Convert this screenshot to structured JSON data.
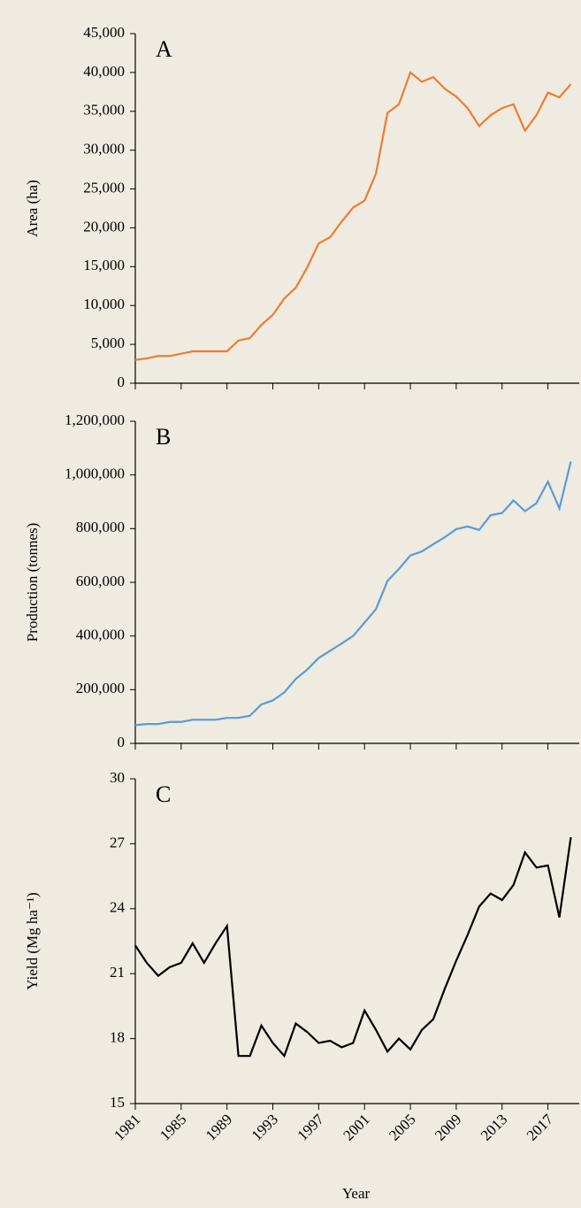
{
  "chart_data": [
    {
      "type": "line",
      "annotation": "A",
      "ylabel": "Area (ha)",
      "color": "#ed7d31",
      "x": [
        1981,
        1982,
        1983,
        1984,
        1985,
        1986,
        1987,
        1988,
        1989,
        1990,
        1991,
        1992,
        1993,
        1994,
        1995,
        1996,
        1997,
        1998,
        1999,
        2000,
        2001,
        2002,
        2003,
        2004,
        2005,
        2006,
        2007,
        2008,
        2009,
        2010,
        2011,
        2012,
        2013,
        2014,
        2015,
        2016,
        2017,
        2018,
        2019
      ],
      "values": [
        3000,
        3200,
        3500,
        3500,
        3800,
        4100,
        4100,
        4100,
        4100,
        5500,
        5800,
        7500,
        8800,
        10900,
        12300,
        14900,
        18000,
        18800,
        20800,
        22600,
        23500,
        27000,
        34800,
        35900,
        40000,
        38800,
        39400,
        37900,
        36900,
        35400,
        33100,
        34500,
        35400,
        35900,
        32500,
        34500,
        37400,
        36800,
        38500
      ],
      "xlim": [
        1981,
        2019.5
      ],
      "ylim": [
        0,
        45000
      ],
      "yticks": [
        0,
        {
          "value": 5000,
          "label": "5,000"
        },
        {
          "value": 10000,
          "label": "10,000"
        },
        {
          "value": 15000,
          "label": "15,000"
        },
        {
          "value": 20000,
          "label": "20,000"
        },
        {
          "value": 25000,
          "label": "25,000"
        },
        {
          "value": 30000,
          "label": "30,000"
        },
        {
          "value": 35000,
          "label": "35,000"
        },
        {
          "value": 40000,
          "label": "40,000"
        },
        {
          "value": 45000,
          "label": "45,000"
        }
      ]
    },
    {
      "type": "line",
      "annotation": "B",
      "ylabel": "Production  (tonnes)",
      "color": "#5b9bd5",
      "x": [
        1981,
        1982,
        1983,
        1984,
        1985,
        1986,
        1987,
        1988,
        1989,
        1990,
        1991,
        1992,
        1993,
        1994,
        1995,
        1996,
        1997,
        1998,
        1999,
        2000,
        2001,
        2002,
        2003,
        2004,
        2005,
        2006,
        2007,
        2008,
        2009,
        2010,
        2011,
        2012,
        2013,
        2014,
        2015,
        2016,
        2017,
        2018,
        2019
      ],
      "values": [
        68000,
        72000,
        72000,
        80000,
        80000,
        88000,
        88000,
        88000,
        95000,
        95000,
        103000,
        145000,
        160000,
        190000,
        240000,
        275000,
        318000,
        345000,
        372000,
        400000,
        450000,
        500000,
        605000,
        650000,
        700000,
        715000,
        742000,
        768000,
        798000,
        808000,
        795000,
        850000,
        858000,
        905000,
        865000,
        895000,
        975000,
        875000,
        1050000
      ],
      "xlim": [
        1981,
        2019.5
      ],
      "ylim": [
        0,
        1200000
      ],
      "yticks": [
        0,
        {
          "value": 200000,
          "label": "200,000"
        },
        {
          "value": 400000,
          "label": "400,000"
        },
        {
          "value": 600000,
          "label": "600,000"
        },
        {
          "value": 800000,
          "label": "800,000"
        },
        {
          "value": 1000000,
          "label": "1,000,000"
        },
        {
          "value": 1200000,
          "label": "1,200,000"
        }
      ]
    },
    {
      "type": "line",
      "annotation": "C",
      "ylabel": "Yield  (Mg ha⁻¹)",
      "xlabel": "Year",
      "color": "#000000",
      "x": [
        1981,
        1982,
        1983,
        1984,
        1985,
        1986,
        1987,
        1988,
        1989,
        1990,
        1991,
        1992,
        1993,
        1994,
        1995,
        1996,
        1997,
        1998,
        1999,
        2000,
        2001,
        2002,
        2003,
        2004,
        2005,
        2006,
        2007,
        2008,
        2009,
        2010,
        2011,
        2012,
        2013,
        2014,
        2015,
        2016,
        2017,
        2018,
        2019
      ],
      "values": [
        22.3,
        21.5,
        20.9,
        21.3,
        21.5,
        22.4,
        21.5,
        22.4,
        23.2,
        17.2,
        17.2,
        18.6,
        17.8,
        17.2,
        18.7,
        18.3,
        17.8,
        17.9,
        17.6,
        17.8,
        19.3,
        18.4,
        17.4,
        18.0,
        17.5,
        18.4,
        18.9,
        20.3,
        21.6,
        22.8,
        24.1,
        24.7,
        24.4,
        25.1,
        26.6,
        25.9,
        26.0,
        23.6,
        27.3
      ],
      "xlim": [
        1981,
        2019.5
      ],
      "ylim": [
        15,
        30
      ],
      "yticks": [
        15,
        18,
        21,
        24,
        27,
        30
      ],
      "xticks": [
        1981,
        1985,
        1989,
        1993,
        1997,
        2001,
        2005,
        2009,
        2013,
        2017
      ]
    }
  ]
}
